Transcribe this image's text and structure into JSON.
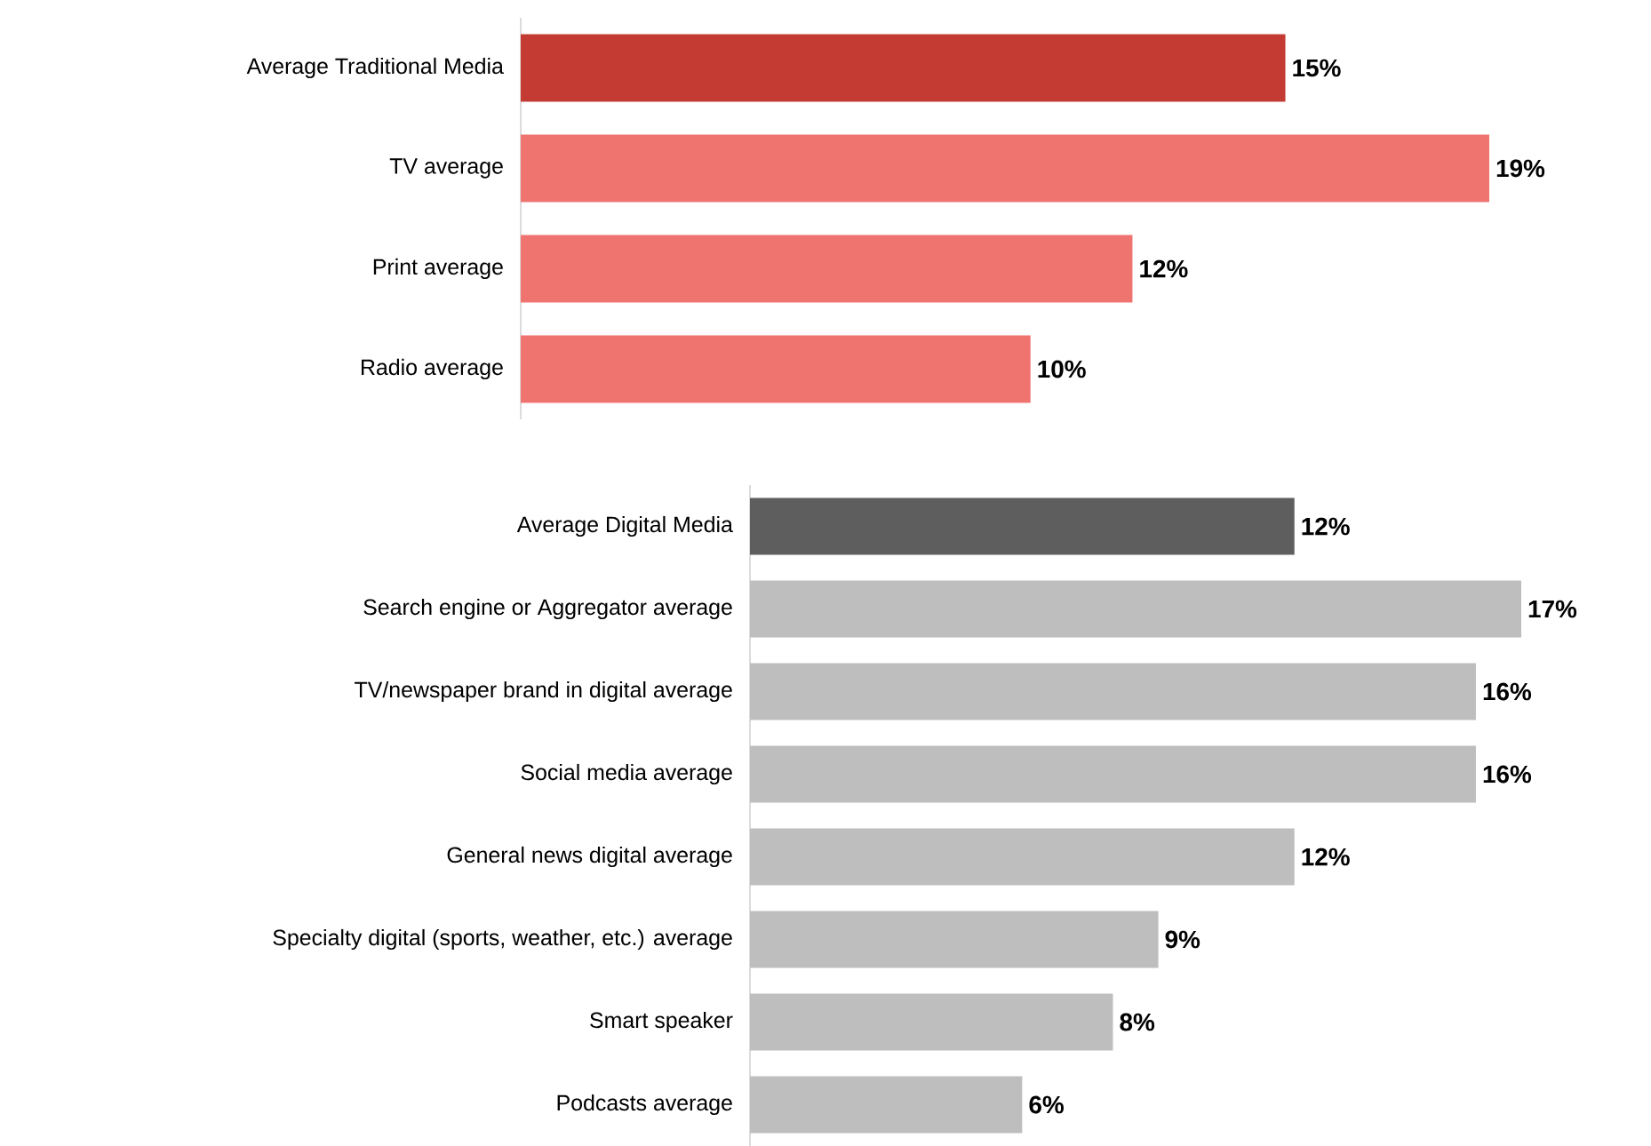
{
  "chart_data": [
    {
      "type": "bar",
      "orientation": "horizontal",
      "categories": [
        "Average Traditional Media",
        "TV average",
        "Print average",
        "Radio average"
      ],
      "values": [
        15,
        19,
        12,
        10
      ],
      "colors": [
        "#c33b33",
        "#ef7470",
        "#ef7470",
        "#ef7470"
      ],
      "value_labels": [
        "15%",
        "19%",
        "12%",
        "10%"
      ]
    },
    {
      "type": "bar",
      "orientation": "horizontal",
      "categories": [
        "Average Digital Media",
        "Search engine or Aggregator average",
        "TV/newspaper brand in digital average",
        "Social media average",
        "General news digital average",
        "Specialty digital (sports, weather, etc.) average",
        "Smart speaker",
        "Podcasts average"
      ],
      "values": [
        12,
        17,
        16,
        16,
        12,
        9,
        8,
        6
      ],
      "colors": [
        "#5e5e5e",
        "#bfbebe",
        "#bfbebe",
        "#bfbebe",
        "#bfbebe",
        "#bfbebe",
        "#bfbebe",
        "#bfbebe"
      ],
      "value_labels": [
        "12%",
        "17%",
        "16%",
        "16%",
        "12%",
        "9%",
        "8%",
        "6%"
      ]
    }
  ]
}
